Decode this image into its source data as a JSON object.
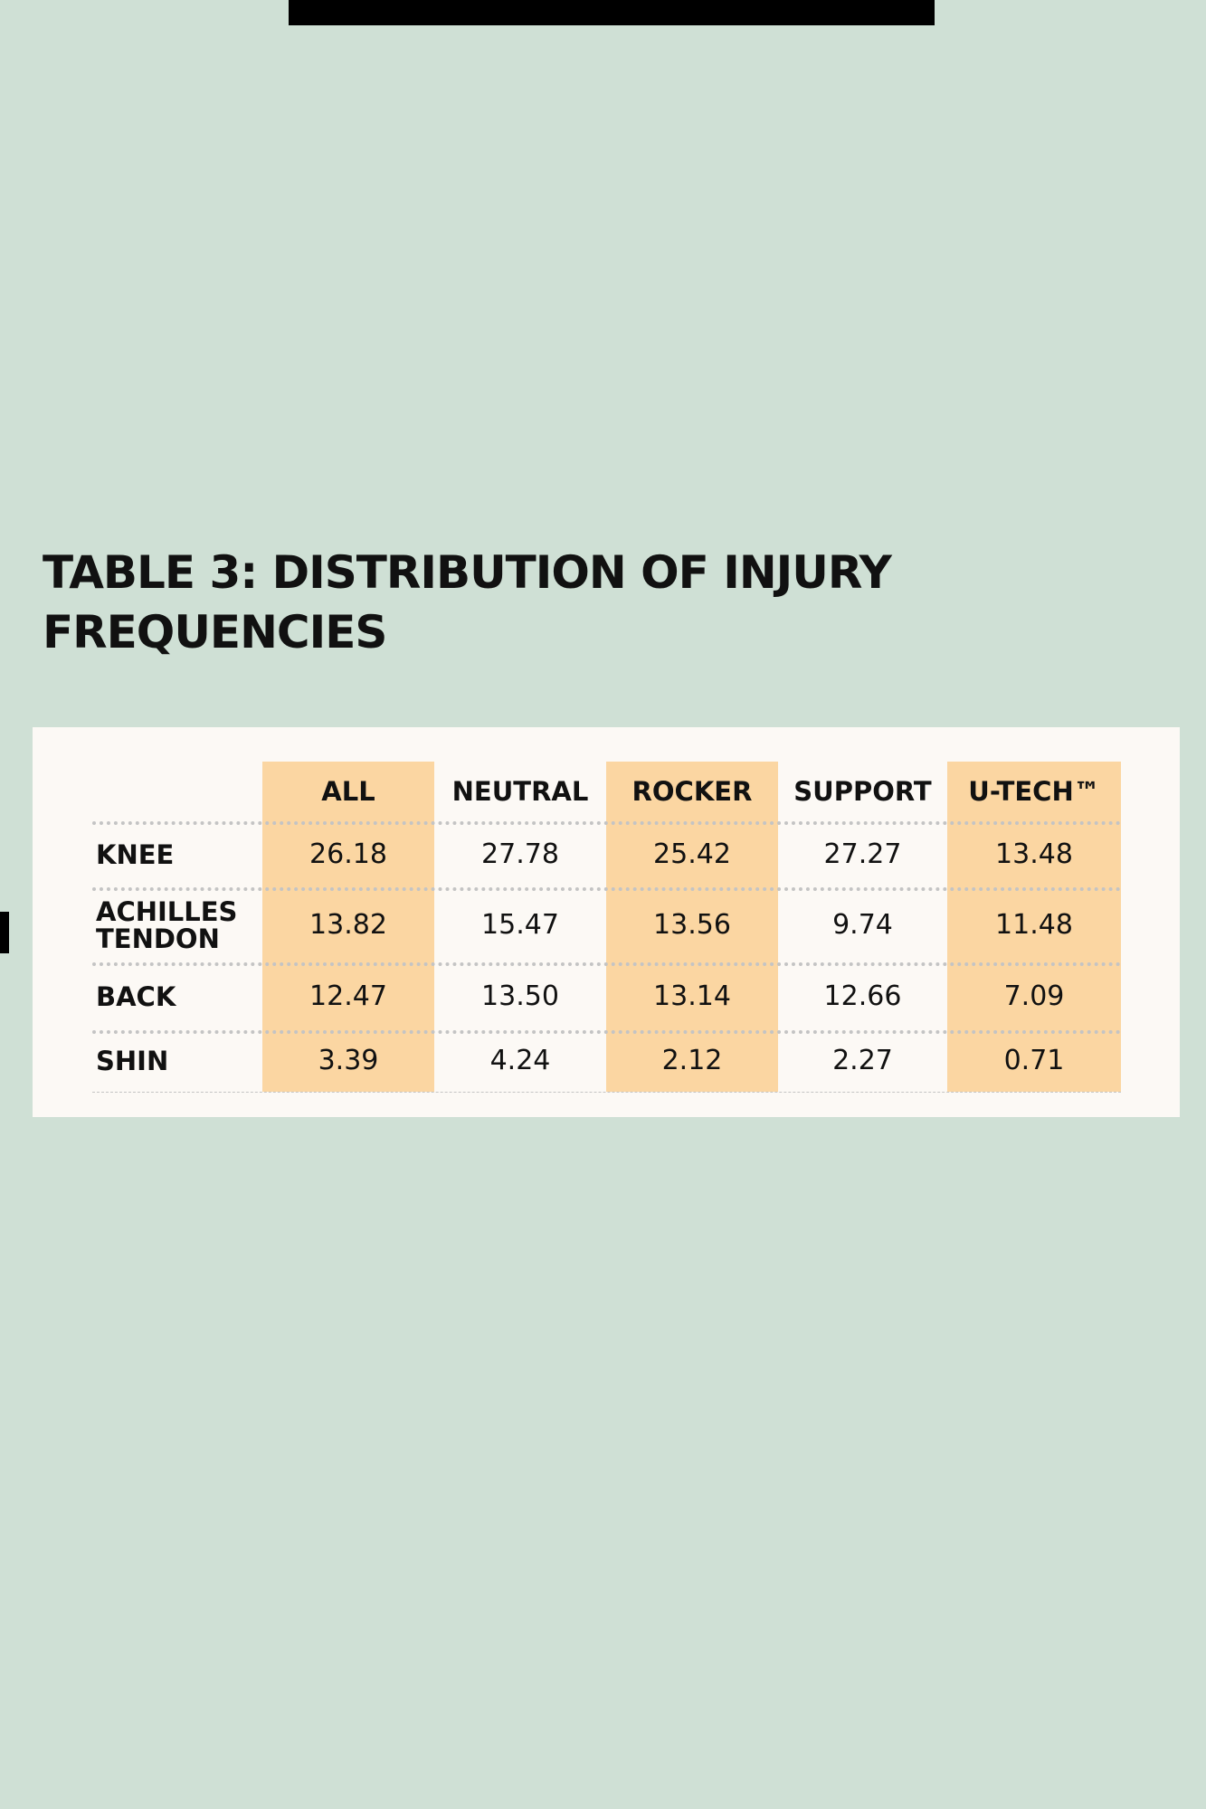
{
  "table": {
    "title": "TABLE 3: DISTRIBUTION OF INJURY FREQUENCIES",
    "columns": [
      "ALL",
      "NEUTRAL",
      "ROCKER",
      "SUPPORT",
      "U-TECH™"
    ],
    "rows": [
      {
        "label": "KNEE",
        "values": [
          "26.18",
          "27.78",
          "25.42",
          "27.27",
          "13.48"
        ]
      },
      {
        "label": "ACHILLES TENDON",
        "values": [
          "13.82",
          "15.47",
          "13.56",
          "9.74",
          "11.48"
        ]
      },
      {
        "label": "BACK",
        "values": [
          "12.47",
          "13.50",
          "13.14",
          "12.66",
          "7.09"
        ]
      },
      {
        "label": "SHIN",
        "values": [
          "3.39",
          "4.24",
          "2.12",
          "2.27",
          "0.71"
        ]
      }
    ]
  }
}
